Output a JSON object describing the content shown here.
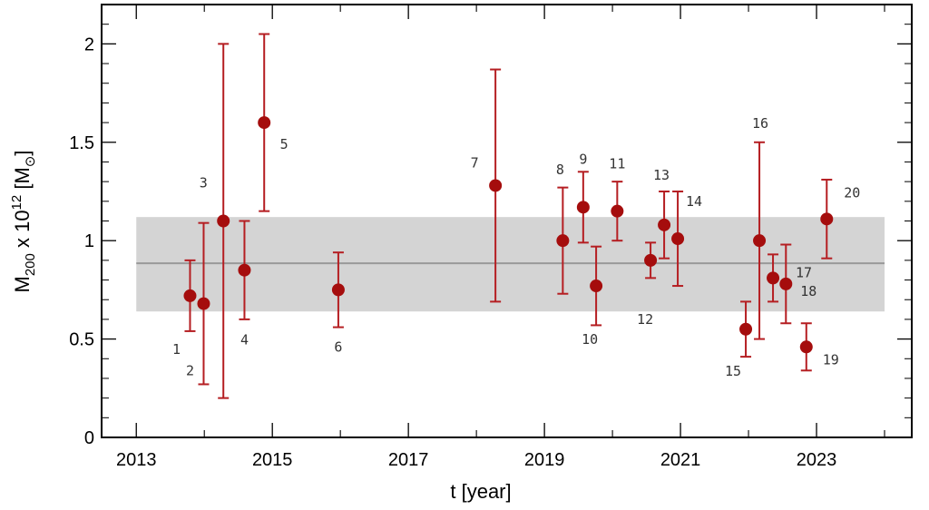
{
  "chart_data": {
    "type": "scatter",
    "title": "",
    "xlabel": "t [year]",
    "ylabel_main": "M",
    "ylabel_sub": "200",
    "ylabel_mid": " x 10",
    "ylabel_sup": "12",
    "ylabel_unit_open": " [M",
    "ylabel_unit_sym": "⊙",
    "ylabel_unit_close": "]",
    "xlim": [
      2012.49,
      2024.4
    ],
    "ylim": [
      0,
      2.2
    ],
    "x_ticks": [
      2013,
      2015,
      2017,
      2019,
      2021,
      2023
    ],
    "x_tick_labels": [
      "2013",
      "2015",
      "2017",
      "2019",
      "2021",
      "2023"
    ],
    "x_minor_ticks": [
      2014,
      2016,
      2018,
      2020,
      2022,
      2024
    ],
    "y_ticks": [
      0,
      0.5,
      1,
      1.5,
      2
    ],
    "y_tick_labels": [
      "0",
      "0.5",
      "1",
      "1.5",
      "2"
    ],
    "grid": false,
    "band": {
      "x_start": 2013,
      "x_end": 2024,
      "lower": 0.64,
      "upper": 1.12,
      "mean": 0.885
    },
    "points": [
      {
        "label": "1",
        "x": 2013.79,
        "y": 0.72,
        "lo": 0.54,
        "hi": 0.9
      },
      {
        "label": "2",
        "x": 2013.99,
        "y": 0.68,
        "lo": 0.27,
        "hi": 1.09
      },
      {
        "label": "3",
        "x": 2014.28,
        "y": 1.1,
        "lo": 0.2,
        "hi": 2.0
      },
      {
        "label": "4",
        "x": 2014.59,
        "y": 0.85,
        "lo": 0.6,
        "hi": 1.1
      },
      {
        "label": "5",
        "x": 2014.88,
        "y": 1.6,
        "lo": 1.15,
        "hi": 2.05
      },
      {
        "label": "6",
        "x": 2015.97,
        "y": 0.75,
        "lo": 0.56,
        "hi": 0.94
      },
      {
        "label": "7",
        "x": 2018.28,
        "y": 1.28,
        "lo": 0.69,
        "hi": 1.87
      },
      {
        "label": "8",
        "x": 2019.27,
        "y": 1.0,
        "lo": 0.73,
        "hi": 1.27
      },
      {
        "label": "9",
        "x": 2019.57,
        "y": 1.17,
        "lo": 0.99,
        "hi": 1.35
      },
      {
        "label": "10",
        "x": 2019.76,
        "y": 0.77,
        "lo": 0.57,
        "hi": 0.97
      },
      {
        "label": "11",
        "x": 2020.07,
        "y": 1.15,
        "lo": 1.0,
        "hi": 1.3
      },
      {
        "label": "12",
        "x": 2020.56,
        "y": 0.9,
        "lo": 0.81,
        "hi": 0.99
      },
      {
        "label": "13",
        "x": 2020.76,
        "y": 1.08,
        "lo": 0.91,
        "hi": 1.25
      },
      {
        "label": "14",
        "x": 2020.96,
        "y": 1.01,
        "lo": 0.77,
        "hi": 1.25
      },
      {
        "label": "15",
        "x": 2021.96,
        "y": 0.55,
        "lo": 0.41,
        "hi": 0.69
      },
      {
        "label": "16",
        "x": 2022.16,
        "y": 1.0,
        "lo": 0.5,
        "hi": 1.5
      },
      {
        "label": "17",
        "x": 2022.36,
        "y": 0.81,
        "lo": 0.69,
        "hi": 0.93
      },
      {
        "label": "18",
        "x": 2022.55,
        "y": 0.78,
        "lo": 0.58,
        "hi": 0.98
      },
      {
        "label": "19",
        "x": 2022.85,
        "y": 0.46,
        "lo": 0.34,
        "hi": 0.58
      },
      {
        "label": "20",
        "x": 2023.15,
        "y": 1.11,
        "lo": 0.91,
        "hi": 1.31
      }
    ],
    "colors": {
      "point": "#a50d0d",
      "errorbar": "#b51e22",
      "band": "#d4d4d4",
      "mean_line": "#999999"
    }
  }
}
